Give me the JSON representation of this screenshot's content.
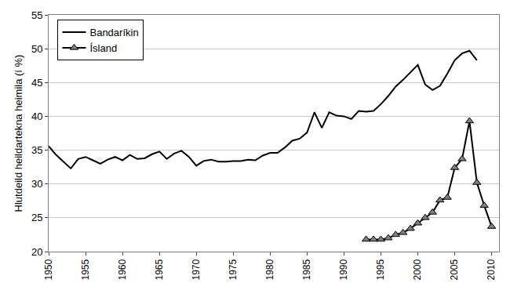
{
  "chart_data": {
    "type": "line",
    "y_label": "Hlutdeild heildartekna heimila (í %)",
    "x": [
      1950,
      1951,
      1952,
      1953,
      1954,
      1955,
      1956,
      1957,
      1958,
      1959,
      1960,
      1961,
      1962,
      1963,
      1964,
      1965,
      1966,
      1967,
      1968,
      1969,
      1970,
      1971,
      1972,
      1973,
      1974,
      1975,
      1976,
      1977,
      1978,
      1979,
      1980,
      1981,
      1982,
      1983,
      1984,
      1985,
      1986,
      1987,
      1988,
      1989,
      1990,
      1991,
      1992,
      1993,
      1994,
      1995,
      1996,
      1997,
      1998,
      1999,
      2000,
      2001,
      2002,
      2003,
      2004,
      2005,
      2006,
      2007,
      2008,
      2009,
      2010
    ],
    "series": [
      {
        "name": "Bandaríkin",
        "color": "#000000",
        "line_style": "solid",
        "values": [
          35.6,
          34.3,
          33.3,
          32.3,
          33.7,
          34.0,
          33.5,
          33.0,
          33.6,
          34.0,
          33.5,
          34.3,
          33.7,
          33.8,
          34.4,
          34.8,
          33.7,
          34.5,
          34.9,
          34.0,
          32.7,
          33.4,
          33.6,
          33.3,
          33.3,
          33.4,
          33.4,
          33.6,
          33.5,
          34.2,
          34.6,
          34.6,
          35.4,
          36.4,
          36.7,
          37.6,
          40.6,
          38.3,
          40.6,
          40.1,
          40.0,
          39.6,
          40.8,
          40.7,
          40.8,
          41.8,
          43.0,
          44.4,
          45.4,
          46.5,
          47.6,
          44.7,
          43.9,
          44.5,
          46.3,
          48.3,
          49.3,
          49.7,
          48.3,
          null,
          null
        ]
      },
      {
        "name": "Ísland",
        "color": "#000000",
        "line_style": "solid",
        "marker": "triangle",
        "values": [
          null,
          null,
          null,
          null,
          null,
          null,
          null,
          null,
          null,
          null,
          null,
          null,
          null,
          null,
          null,
          null,
          null,
          null,
          null,
          null,
          null,
          null,
          null,
          null,
          null,
          null,
          null,
          null,
          null,
          null,
          null,
          null,
          null,
          null,
          null,
          null,
          null,
          null,
          null,
          null,
          null,
          null,
          null,
          21.8,
          21.8,
          21.8,
          22.0,
          22.5,
          22.8,
          23.4,
          24.2,
          25.0,
          25.8,
          27.6,
          28.0,
          32.4,
          33.7,
          39.3,
          30.2,
          26.8,
          23.7
        ]
      }
    ],
    "xlim": [
      1950,
      2011
    ],
    "xticks": [
      1950,
      1955,
      1960,
      1965,
      1970,
      1975,
      1980,
      1985,
      1990,
      1995,
      2000,
      2005,
      2010
    ],
    "ylim": [
      20,
      55
    ],
    "yticks": [
      20,
      25,
      30,
      35,
      40,
      45,
      50,
      55
    ],
    "grid": true,
    "legend": "upper left"
  }
}
